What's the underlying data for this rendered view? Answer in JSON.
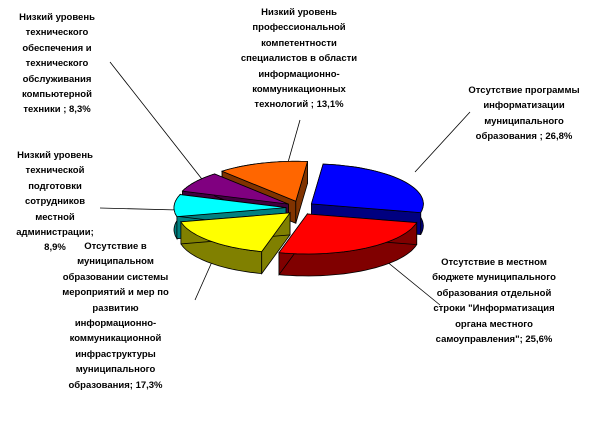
{
  "chart_data": {
    "type": "pie",
    "style": "3d-exploded",
    "legend": "none",
    "slices": [
      {
        "label": "Отсутствие программы информатизации муниципального образования ; 26,8%",
        "value": 26.8,
        "color": "#0000FF",
        "side_color": "#000080"
      },
      {
        "label": "Отсутствие в местном бюджете муниципального образования отдельной строки \"Информатизация органа местного самоуправления\"; 25,6%",
        "value": 25.6,
        "color": "#FF0000",
        "side_color": "#800000"
      },
      {
        "label": "Отсутствие в муниципальном образовании системы мероприятий и мер по развитию информационно-коммуникационной инфраструктуры муниципального образования; 17,3%",
        "value": 17.3,
        "color": "#FFFF00",
        "side_color": "#808000"
      },
      {
        "label": "Низкий уровень технической подготовки сотрудников местной администрации; 8,9%",
        "value": 8.9,
        "color": "#00FFFF",
        "side_color": "#008080"
      },
      {
        "label": "Низкий уровень технического обеспечения и технического обслуживания компьютерной техники ; 8,3%",
        "value": 8.3,
        "color": "#800080",
        "side_color": "#400040"
      },
      {
        "label": "Низкий уровень профессиональной компетентности специалистов в области информационно-коммуникационных технологий ; 13,1%",
        "value": 13.1,
        "color": "#FF6600",
        "side_color": "#803300"
      }
    ]
  }
}
